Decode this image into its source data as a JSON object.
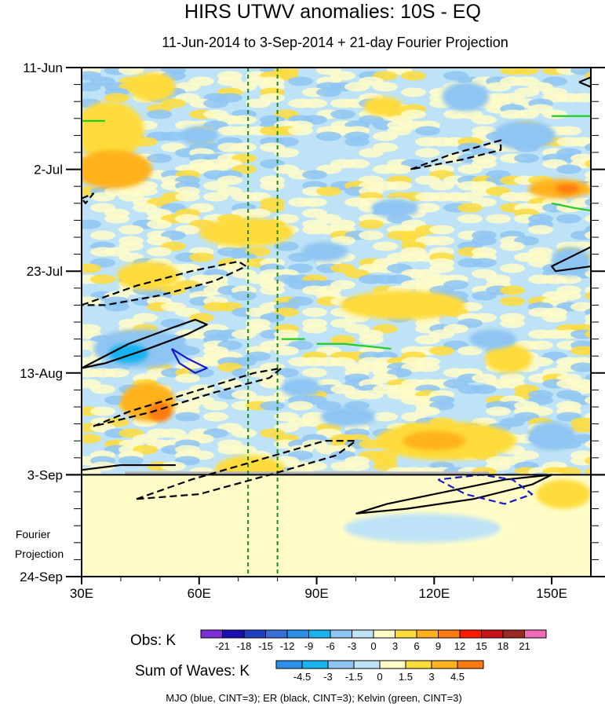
{
  "chart_data": {
    "type": "heatmap",
    "title": "HIRS UTWV anomalies: 10S - EQ",
    "subtitle": "11-Jun-2014 to 3-Sep-2014 + 21-day Fourier Projection",
    "x_axis": {
      "range": [
        30,
        160
      ],
      "unit": "degrees East longitude",
      "ticks": [
        {
          "value": 30,
          "label": "30E"
        },
        {
          "value": 60,
          "label": "60E"
        },
        {
          "value": 90,
          "label": "90E"
        },
        {
          "value": 120,
          "label": "120E"
        },
        {
          "value": 150,
          "label": "150E"
        }
      ]
    },
    "y_axis": {
      "range_days": [
        0,
        105
      ],
      "direction": "time increases downward",
      "ticks": [
        {
          "day": 0,
          "label": "11-Jun"
        },
        {
          "day": 21,
          "label": "2-Jul"
        },
        {
          "day": 42,
          "label": "23-Jul"
        },
        {
          "day": 63,
          "label": "13-Aug"
        },
        {
          "day": 84,
          "label": "3-Sep"
        },
        {
          "day": 105,
          "label": "24-Sep"
        }
      ]
    },
    "observation_end_day": 84,
    "projection_label_line1": "Fourier",
    "projection_label_line2": "Projection",
    "reference_longitudes": [
      72.5,
      80
    ],
    "obs_colorbar": {
      "label": "Obs: K",
      "levels": [
        "-21",
        "-18",
        "-15",
        "-12",
        "-9",
        "-6",
        "-3",
        "0",
        "3",
        "6",
        "9",
        "12",
        "15",
        "18",
        "21"
      ],
      "colors": [
        "#7b2fd6",
        "#1a0fb0",
        "#1f3fc2",
        "#3a6fd8",
        "#2a8fe6",
        "#19b3f0",
        "#8ec5f2",
        "#bfe3f6",
        "#fffcc8",
        "#ffdc3a",
        "#ffb21e",
        "#ff7a10",
        "#ff1a00",
        "#c81418",
        "#9b2a22",
        "#f06ab8"
      ]
    },
    "waves_colorbar": {
      "label": "Sum of Waves: K",
      "levels": [
        "-4.5",
        "-3",
        "-1.5",
        "0",
        "1.5",
        "3",
        "4.5"
      ],
      "colors": [
        "#2a8fe6",
        "#19b3f0",
        "#8ec5f2",
        "#bfe3f6",
        "#fffcc8",
        "#ffdc3a",
        "#ffb21e",
        "#ff7a10"
      ]
    },
    "footer": "MJO (blue, CINT=3); ER (black, CINT=3); Kelvin (green, CINT=3)",
    "anomaly_blobs": [
      {
        "cls": "pos",
        "lon": 37,
        "day": 13,
        "rx_deg": 9,
        "ry_days": 6,
        "level": 1
      },
      {
        "cls": "pos",
        "lon": 38,
        "day": 21,
        "rx_deg": 10,
        "ry_days": 4,
        "level": 2
      },
      {
        "cls": "pos",
        "lon": 48,
        "day": 4,
        "rx_deg": 6,
        "ry_days": 3,
        "level": 1
      },
      {
        "cls": "pos",
        "lon": 72,
        "day": 34,
        "rx_deg": 12,
        "ry_days": 3,
        "level": 1
      },
      {
        "cls": "pos",
        "lon": 47,
        "day": 43,
        "rx_deg": 8,
        "ry_days": 3,
        "level": 1
      },
      {
        "cls": "pos",
        "lon": 47,
        "day": 69,
        "rx_deg": 7,
        "ry_days": 4,
        "level": 2
      },
      {
        "cls": "pos",
        "lon": 50,
        "day": 71,
        "rx_deg": 3,
        "ry_days": 2,
        "level": 3
      },
      {
        "cls": "pos",
        "lon": 112,
        "day": 49,
        "rx_deg": 16,
        "ry_days": 3,
        "level": 1
      },
      {
        "cls": "pos",
        "lon": 123,
        "day": 77,
        "rx_deg": 18,
        "ry_days": 4,
        "level": 1
      },
      {
        "cls": "pos",
        "lon": 120,
        "day": 77,
        "rx_deg": 8,
        "ry_days": 2,
        "level": 2
      },
      {
        "cls": "pos",
        "lon": 152,
        "day": 25,
        "rx_deg": 8,
        "ry_days": 2,
        "level": 2
      },
      {
        "cls": "pos",
        "lon": 154,
        "day": 25,
        "rx_deg": 3,
        "ry_days": 1,
        "level": 3
      },
      {
        "cls": "pos",
        "lon": 73,
        "day": 83,
        "rx_deg": 9,
        "ry_days": 3,
        "level": 1
      },
      {
        "cls": "pos",
        "lon": 107,
        "day": 8,
        "rx_deg": 5,
        "ry_days": 2,
        "level": 1
      },
      {
        "cls": "pos",
        "lon": 139,
        "day": 60,
        "rx_deg": 6,
        "ry_days": 3,
        "level": 1
      },
      {
        "cls": "pos",
        "lon": 153,
        "day": 88,
        "rx_deg": 7,
        "ry_days": 3,
        "level": 1
      },
      {
        "cls": "neg",
        "lon": 45,
        "day": 58,
        "rx_deg": 12,
        "ry_days": 4,
        "level": 1
      },
      {
        "cls": "neg",
        "lon": 42,
        "day": 59,
        "rx_deg": 5,
        "ry_days": 2,
        "level": 2
      },
      {
        "cls": "neg",
        "lon": 128,
        "day": 6,
        "rx_deg": 6,
        "ry_days": 3,
        "level": 1
      },
      {
        "cls": "neg",
        "lon": 92,
        "day": 38,
        "rx_deg": 6,
        "ry_days": 2,
        "level": 1
      },
      {
        "cls": "neg",
        "lon": 143,
        "day": 14,
        "rx_deg": 8,
        "ry_days": 3,
        "level": 1
      },
      {
        "cls": "neg",
        "lon": 110,
        "day": 29,
        "rx_deg": 6,
        "ry_days": 2,
        "level": 1
      },
      {
        "cls": "neg",
        "lon": 98,
        "day": 72,
        "rx_deg": 7,
        "ry_days": 2,
        "level": 1
      },
      {
        "cls": "neg",
        "lon": 86,
        "day": 66,
        "rx_deg": 5,
        "ry_days": 2,
        "level": 1
      },
      {
        "cls": "neg",
        "lon": 135,
        "day": 56,
        "rx_deg": 6,
        "ry_days": 2,
        "level": 1
      },
      {
        "cls": "neg",
        "lon": 150,
        "day": 76,
        "rx_deg": 6,
        "ry_days": 3,
        "level": 1
      },
      {
        "cls": "neg",
        "lon": 60,
        "day": 14,
        "rx_deg": 5,
        "ry_days": 2,
        "level": 1
      },
      {
        "cls": "neg",
        "lon": 155,
        "day": 40,
        "rx_deg": 5,
        "ry_days": 3,
        "level": 1
      },
      {
        "cls": "neg",
        "lon": 117,
        "day": 95,
        "rx_deg": 20,
        "ry_days": 3,
        "level": 0
      }
    ],
    "wave_contours": [
      {
        "wave": "ER",
        "sign": "positive",
        "points": [
          [
            30,
            62
          ],
          [
            42,
            57
          ],
          [
            52,
            54
          ],
          [
            59,
            52
          ],
          [
            62,
            53
          ],
          [
            57,
            55
          ],
          [
            47,
            58
          ],
          [
            36,
            61
          ],
          [
            30,
            62
          ]
        ]
      },
      {
        "wave": "ER",
        "sign": "positive",
        "points": [
          [
            30,
            83
          ],
          [
            40,
            82
          ],
          [
            54,
            82
          ]
        ]
      },
      {
        "wave": "ER",
        "sign": "positive",
        "points": [
          [
            160,
            37
          ],
          [
            155,
            39
          ],
          [
            150,
            41
          ],
          [
            151,
            42
          ],
          [
            160,
            41
          ]
        ]
      },
      {
        "wave": "ER",
        "sign": "positive",
        "points": [
          [
            100,
            92
          ],
          [
            108,
            90
          ],
          [
            120,
            88
          ],
          [
            138,
            85
          ],
          [
            150,
            84
          ],
          [
            145,
            86
          ],
          [
            130,
            89
          ],
          [
            113,
            91
          ],
          [
            100,
            92
          ]
        ]
      },
      {
        "wave": "ER",
        "sign": "positive",
        "points": [
          [
            157,
            3
          ],
          [
            160,
            2
          ],
          [
            160,
            4
          ],
          [
            157,
            3
          ]
        ]
      },
      {
        "wave": "ER",
        "sign": "negative",
        "points": [
          [
            30,
            49
          ],
          [
            44,
            45
          ],
          [
            58,
            42
          ],
          [
            70,
            40
          ],
          [
            72,
            41
          ],
          [
            64,
            44
          ],
          [
            50,
            47
          ],
          [
            36,
            49
          ],
          [
            30,
            49
          ]
        ]
      },
      {
        "wave": "ER",
        "sign": "negative",
        "points": [
          [
            33,
            74
          ],
          [
            42,
            71
          ],
          [
            58,
            67
          ],
          [
            74,
            63
          ],
          [
            81,
            62
          ],
          [
            78,
            64
          ],
          [
            64,
            67
          ],
          [
            48,
            71
          ],
          [
            33,
            74
          ]
        ]
      },
      {
        "wave": "ER",
        "sign": "negative",
        "points": [
          [
            44,
            89
          ],
          [
            58,
            85
          ],
          [
            75,
            81
          ],
          [
            92,
            77
          ],
          [
            100,
            77
          ],
          [
            95,
            80
          ],
          [
            78,
            84
          ],
          [
            60,
            88
          ],
          [
            44,
            89
          ]
        ]
      },
      {
        "wave": "ER",
        "sign": "negative",
        "points": [
          [
            114,
            21
          ],
          [
            124,
            18
          ],
          [
            137,
            15
          ],
          [
            137,
            17
          ],
          [
            127,
            19
          ],
          [
            114,
            21
          ]
        ]
      },
      {
        "wave": "ER",
        "sign": "negative",
        "points": [
          [
            30,
            27
          ],
          [
            33,
            26
          ],
          [
            31,
            28
          ],
          [
            30,
            27
          ]
        ]
      },
      {
        "wave": "MJO",
        "sign": "positive",
        "points": [
          [
            53,
            58
          ],
          [
            57,
            60
          ],
          [
            62,
            62
          ],
          [
            59,
            63
          ],
          [
            55,
            61
          ],
          [
            53,
            58
          ]
        ]
      },
      {
        "wave": "MJO",
        "sign": "negative",
        "points": [
          [
            121,
            85
          ],
          [
            128,
            88
          ],
          [
            138,
            90
          ],
          [
            145,
            88
          ],
          [
            140,
            85
          ],
          [
            132,
            84
          ],
          [
            121,
            85
          ]
        ]
      },
      {
        "wave": "Kelvin",
        "sign": "positive",
        "points": [
          [
            150,
            28
          ],
          [
            156,
            29
          ],
          [
            160,
            29.5
          ]
        ]
      },
      {
        "wave": "Kelvin",
        "sign": "positive",
        "points": [
          [
            150,
            10
          ],
          [
            160,
            10
          ]
        ]
      },
      {
        "wave": "Kelvin",
        "sign": "positive",
        "points": [
          [
            30,
            11
          ],
          [
            36,
            11
          ]
        ]
      },
      {
        "wave": "Kelvin",
        "sign": "positive",
        "points": [
          [
            81,
            56
          ],
          [
            87,
            56
          ]
        ]
      },
      {
        "wave": "Kelvin",
        "sign": "positive",
        "points": [
          [
            90,
            57
          ],
          [
            97,
            57
          ],
          [
            109,
            58
          ]
        ]
      }
    ]
  }
}
